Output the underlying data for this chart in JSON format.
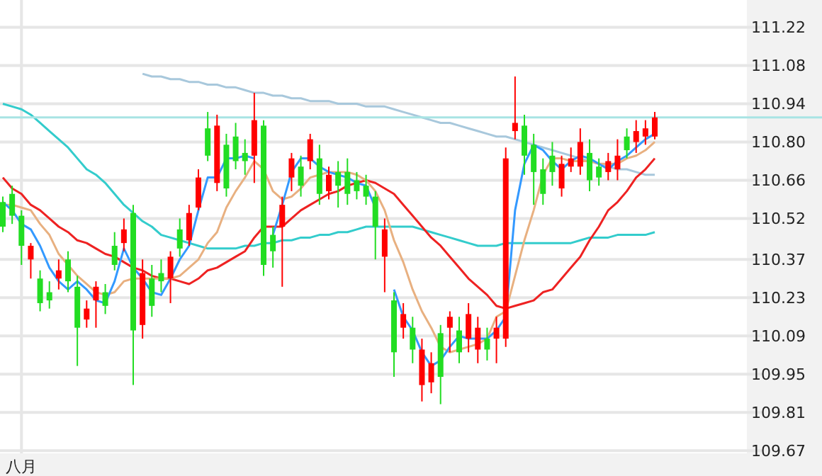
{
  "chart_data": {
    "type": "candlestick",
    "categories": [
      null,
      null,
      "八月",
      null,
      null,
      null,
      null,
      null,
      null,
      null,
      null,
      null,
      null,
      null,
      null,
      null,
      null,
      null,
      null,
      null,
      null,
      null,
      null,
      null,
      null,
      null,
      null,
      null,
      null,
      null,
      null,
      null,
      null,
      null,
      null,
      null,
      null,
      null,
      null,
      null,
      null,
      null,
      null,
      null,
      null,
      null,
      null,
      null,
      null,
      null,
      null,
      null,
      null,
      null,
      null,
      null,
      null,
      null,
      null,
      null,
      null,
      null,
      null,
      null,
      null,
      null,
      null,
      null,
      null,
      null,
      null
    ],
    "ohlc": [
      [
        110.58,
        110.6,
        110.47,
        110.49
      ],
      [
        110.61,
        110.64,
        110.5,
        110.53
      ],
      [
        110.53,
        110.55,
        110.35,
        110.42
      ],
      [
        110.37,
        110.43,
        110.3,
        110.42
      ],
      [
        110.3,
        110.33,
        110.18,
        110.21
      ],
      [
        110.25,
        110.29,
        110.19,
        110.22
      ],
      [
        110.3,
        110.37,
        110.26,
        110.33
      ],
      [
        110.37,
        110.4,
        110.25,
        110.29
      ],
      [
        110.27,
        110.31,
        109.98,
        110.12
      ],
      [
        110.15,
        110.22,
        110.12,
        110.19
      ],
      [
        110.22,
        110.29,
        110.12,
        110.27
      ],
      [
        110.25,
        110.28,
        110.17,
        110.2
      ],
      [
        110.42,
        110.47,
        110.33,
        110.35
      ],
      [
        110.43,
        110.52,
        110.4,
        110.48
      ],
      [
        110.54,
        110.57,
        109.91,
        110.11
      ],
      [
        110.13,
        110.37,
        110.08,
        110.32
      ],
      [
        110.3,
        110.35,
        110.16,
        110.2
      ],
      [
        110.32,
        110.37,
        110.25,
        110.29
      ],
      [
        110.3,
        110.4,
        110.21,
        110.38
      ],
      [
        110.48,
        110.52,
        110.38,
        110.41
      ],
      [
        110.44,
        110.57,
        110.42,
        110.54
      ],
      [
        110.56,
        110.7,
        110.55,
        110.67
      ],
      [
        110.85,
        110.91,
        110.73,
        110.75
      ],
      [
        110.65,
        110.9,
        110.62,
        110.86
      ],
      [
        110.79,
        110.83,
        110.6,
        110.63
      ],
      [
        110.82,
        110.87,
        110.7,
        110.73
      ],
      [
        110.76,
        110.81,
        110.68,
        110.73
      ],
      [
        110.75,
        110.98,
        110.65,
        110.88
      ],
      [
        110.86,
        110.88,
        110.31,
        110.35
      ],
      [
        110.46,
        110.49,
        110.34,
        110.4
      ],
      [
        110.49,
        110.6,
        110.27,
        110.57
      ],
      [
        110.67,
        110.76,
        110.62,
        110.74
      ],
      [
        110.71,
        110.75,
        110.6,
        110.64
      ],
      [
        110.73,
        110.83,
        110.7,
        110.81
      ],
      [
        110.74,
        110.79,
        110.57,
        110.61
      ],
      [
        110.62,
        110.71,
        110.59,
        110.68
      ],
      [
        110.69,
        110.73,
        110.56,
        110.64
      ],
      [
        110.69,
        110.74,
        110.57,
        110.61
      ],
      [
        110.66,
        110.69,
        110.59,
        110.62
      ],
      [
        110.64,
        110.68,
        110.57,
        110.6
      ],
      [
        110.6,
        110.62,
        110.37,
        110.49
      ],
      [
        110.38,
        110.52,
        110.25,
        110.48
      ],
      [
        110.22,
        110.25,
        109.94,
        110.03
      ],
      [
        110.12,
        110.21,
        110.08,
        110.17
      ],
      [
        110.12,
        110.16,
        109.99,
        110.04
      ],
      [
        109.91,
        110.08,
        109.85,
        110.04
      ],
      [
        109.92,
        110.03,
        109.88,
        109.99
      ],
      [
        110.1,
        110.13,
        109.84,
        109.94
      ],
      [
        110.12,
        110.18,
        110.03,
        110.16
      ],
      [
        110.11,
        110.16,
        109.99,
        110.03
      ],
      [
        110.08,
        110.21,
        110.03,
        110.17
      ],
      [
        110.04,
        110.16,
        109.99,
        110.12
      ],
      [
        110.08,
        110.12,
        110.0,
        110.04
      ],
      [
        110.08,
        110.16,
        109.99,
        110.12
      ],
      [
        110.08,
        110.78,
        110.05,
        110.74
      ],
      [
        110.84,
        111.04,
        110.81,
        110.87
      ],
      [
        110.86,
        110.9,
        110.68,
        110.75
      ],
      [
        110.79,
        110.83,
        110.57,
        110.69
      ],
      [
        110.7,
        110.74,
        110.57,
        110.61
      ],
      [
        110.75,
        110.8,
        110.64,
        110.69
      ],
      [
        110.63,
        110.75,
        110.6,
        110.72
      ],
      [
        110.71,
        110.78,
        110.69,
        110.74
      ],
      [
        110.71,
        110.85,
        110.68,
        110.8
      ],
      [
        110.76,
        110.81,
        110.62,
        110.66
      ],
      [
        110.71,
        110.74,
        110.64,
        110.67
      ],
      [
        110.69,
        110.76,
        110.66,
        110.73
      ],
      [
        110.7,
        110.81,
        110.66,
        110.75
      ],
      [
        110.82,
        110.85,
        110.74,
        110.77
      ],
      [
        110.8,
        110.88,
        110.76,
        110.84
      ],
      [
        110.82,
        110.88,
        110.79,
        110.85
      ],
      [
        110.82,
        110.91,
        110.81,
        110.89
      ]
    ],
    "colors": [
      "#22dd22",
      "#22dd22",
      "#22dd22",
      "#ff0000",
      "#22dd22",
      "#22dd22",
      "#ff0000",
      "#22dd22",
      "#22dd22",
      "#ff0000",
      "#ff0000",
      "#22dd22",
      "#22dd22",
      "#ff0000",
      "#22dd22",
      "#ff0000",
      "#22dd22",
      "#22dd22",
      "#ff0000",
      "#22dd22",
      "#ff0000",
      "#ff0000",
      "#22dd22",
      "#ff0000",
      "#22dd22",
      "#22dd22",
      "#22dd22",
      "#ff0000",
      "#22dd22",
      "#22dd22",
      "#ff0000",
      "#ff0000",
      "#22dd22",
      "#ff0000",
      "#22dd22",
      "#ff0000",
      "#22dd22",
      "#22dd22",
      "#22dd22",
      "#22dd22",
      "#22dd22",
      "#ff0000",
      "#22dd22",
      "#ff0000",
      "#22dd22",
      "#ff0000",
      "#ff0000",
      "#22dd22",
      "#ff0000",
      "#22dd22",
      "#ff0000",
      "#ff0000",
      "#22dd22",
      "#ff0000",
      "#ff0000",
      "#ff0000",
      "#22dd22",
      "#22dd22",
      "#22dd22",
      "#22dd22",
      "#ff0000",
      "#ff0000",
      "#ff0000",
      "#22dd22",
      "#22dd22",
      "#ff0000",
      "#ff0000",
      "#22dd22",
      "#ff0000",
      "#ff0000",
      "#ff0000"
    ],
    "series": [
      {
        "type": "line",
        "color": "#a8c8dc",
        "values": [
          null,
          null,
          null,
          null,
          null,
          null,
          null,
          null,
          null,
          null,
          null,
          null,
          null,
          null,
          null,
          111.05,
          111.04,
          111.04,
          111.03,
          111.03,
          111.02,
          111.02,
          111.01,
          111.01,
          111.0,
          111.0,
          110.99,
          110.98,
          110.98,
          110.97,
          110.97,
          110.96,
          110.96,
          110.95,
          110.95,
          110.95,
          110.94,
          110.94,
          110.94,
          110.93,
          110.93,
          110.93,
          110.92,
          110.91,
          110.9,
          110.89,
          110.88,
          110.87,
          110.87,
          110.86,
          110.85,
          110.84,
          110.83,
          110.82,
          110.82,
          110.81,
          110.8,
          110.79,
          110.78,
          110.77,
          110.76,
          110.75,
          110.74,
          110.73,
          110.72,
          110.71,
          110.7,
          110.7,
          110.69,
          110.68,
          110.68
        ]
      },
      {
        "type": "line",
        "color": "#33cccc",
        "values": [
          110.94,
          110.93,
          110.92,
          110.9,
          110.87,
          110.84,
          110.81,
          110.78,
          110.74,
          110.7,
          110.68,
          110.65,
          110.61,
          110.57,
          110.54,
          110.51,
          110.49,
          110.46,
          110.45,
          110.44,
          110.43,
          110.42,
          110.41,
          110.41,
          110.41,
          110.41,
          110.42,
          110.42,
          110.43,
          110.43,
          110.44,
          110.44,
          110.45,
          110.45,
          110.46,
          110.46,
          110.47,
          110.47,
          110.48,
          110.49,
          110.49,
          110.49,
          110.49,
          110.49,
          110.49,
          110.48,
          110.47,
          110.46,
          110.45,
          110.44,
          110.43,
          110.42,
          110.42,
          110.42,
          110.43,
          110.43,
          110.43,
          110.43,
          110.43,
          110.43,
          110.43,
          110.43,
          110.44,
          110.45,
          110.45,
          110.45,
          110.46,
          110.46,
          110.46,
          110.46,
          110.47
        ]
      },
      {
        "type": "line",
        "color": "#ee2222",
        "values": [
          110.67,
          110.63,
          110.61,
          110.57,
          110.55,
          110.52,
          110.49,
          110.47,
          110.44,
          110.43,
          110.41,
          110.39,
          110.38,
          110.36,
          110.34,
          110.33,
          110.31,
          110.3,
          110.3,
          110.29,
          110.28,
          110.3,
          110.33,
          110.34,
          110.36,
          110.38,
          110.4,
          110.45,
          110.49,
          110.49,
          110.49,
          110.52,
          110.55,
          110.57,
          110.59,
          110.61,
          110.62,
          110.64,
          110.65,
          110.66,
          110.65,
          110.63,
          110.61,
          110.57,
          110.53,
          110.49,
          110.45,
          110.42,
          110.38,
          110.34,
          110.3,
          110.27,
          110.24,
          110.2,
          110.19,
          110.2,
          110.21,
          110.22,
          110.25,
          110.26,
          110.3,
          110.34,
          110.38,
          110.44,
          110.49,
          110.55,
          110.58,
          110.62,
          110.67,
          110.7,
          110.74
        ]
      },
      {
        "type": "line",
        "color": "#e8b080",
        "values": [
          110.57,
          110.57,
          110.56,
          110.55,
          110.5,
          110.46,
          110.39,
          110.35,
          110.31,
          110.28,
          110.25,
          110.24,
          110.25,
          110.29,
          110.3,
          110.3,
          110.3,
          110.3,
          110.3,
          110.31,
          110.34,
          110.37,
          110.43,
          110.47,
          110.56,
          110.62,
          110.67,
          110.73,
          110.7,
          110.62,
          110.59,
          110.6,
          110.63,
          110.67,
          110.68,
          110.69,
          110.69,
          110.69,
          110.68,
          110.66,
          110.62,
          110.55,
          110.44,
          110.36,
          110.26,
          110.18,
          110.12,
          110.05,
          110.03,
          110.04,
          110.05,
          110.06,
          110.08,
          110.16,
          110.18,
          110.31,
          110.44,
          110.55,
          110.68,
          110.74,
          110.74,
          110.73,
          110.73,
          110.73,
          110.72,
          110.72,
          110.72,
          110.74,
          110.75,
          110.77,
          110.8
        ]
      },
      {
        "type": "line",
        "color": "#3399ff",
        "values": [
          110.58,
          110.55,
          110.5,
          110.48,
          110.42,
          110.34,
          110.29,
          110.26,
          110.29,
          110.26,
          110.22,
          110.21,
          110.29,
          110.41,
          110.34,
          110.3,
          110.25,
          110.24,
          110.3,
          110.37,
          110.42,
          110.55,
          110.67,
          110.67,
          110.74,
          110.74,
          110.75,
          110.74,
          null,
          110.46,
          110.57,
          110.69,
          110.74,
          110.74,
          110.71,
          110.69,
          110.68,
          110.67,
          110.65,
          110.64,
          110.56,
          null,
          110.26,
          110.16,
          110.11,
          110.03,
          109.98,
          110.0,
          110.05,
          110.09,
          110.08,
          110.08,
          110.08,
          110.11,
          110.16,
          110.55,
          110.72,
          110.79,
          110.77,
          110.73,
          110.7,
          110.73,
          110.75,
          110.74,
          110.72,
          110.7,
          110.73,
          110.75,
          110.78,
          110.81,
          110.83
        ]
      }
    ],
    "ylim": [
      109.66,
      111.32
    ],
    "yticks": [
      111.22,
      111.08,
      110.94,
      {
        "value": 110.8,
        "label": "110.80"
      },
      110.66,
      110.52,
      110.37,
      110.23,
      110.09,
      109.95,
      109.81,
      109.67
    ],
    "grid": true,
    "ref_lines": [
      {
        "axis": "y",
        "value": 110.89,
        "color": "#a8e4e4"
      }
    ]
  }
}
